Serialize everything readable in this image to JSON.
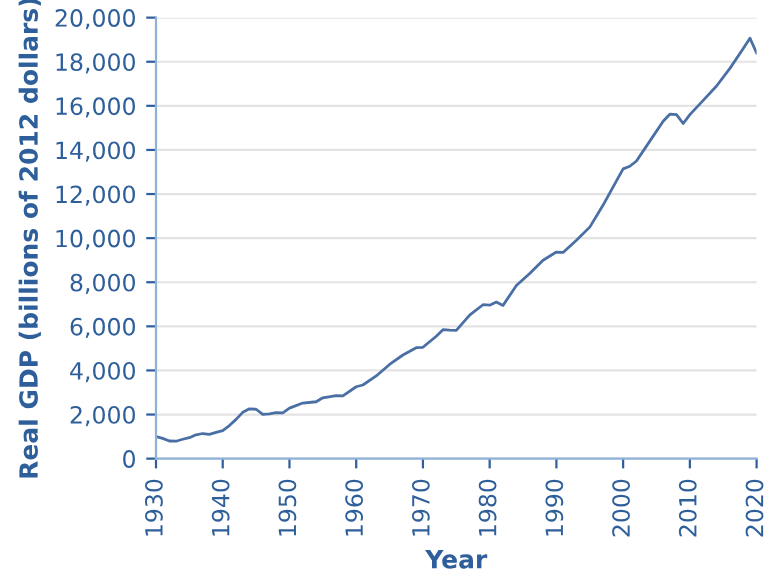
{
  "chart_data": {
    "type": "line",
    "xlabel": "Year",
    "ylabel": "Real GDP (billions of 2012 dollars)",
    "x": [
      1930,
      1931,
      1932,
      1933,
      1934,
      1935,
      1936,
      1937,
      1938,
      1939,
      1940,
      1941,
      1942,
      1943,
      1944,
      1945,
      1946,
      1947,
      1948,
      1949,
      1950,
      1952,
      1954,
      1955,
      1957,
      1958,
      1960,
      1961,
      1963,
      1965,
      1967,
      1969,
      1970,
      1972,
      1973,
      1974,
      1975,
      1977,
      1979,
      1980,
      1981,
      1982,
      1984,
      1986,
      1988,
      1990,
      1991,
      1993,
      1995,
      1997,
      1999,
      2000,
      2001,
      2002,
      2004,
      2006,
      2007,
      2008,
      2009,
      2010,
      2012,
      2014,
      2016,
      2018,
      2019,
      2020
    ],
    "series": [
      {
        "color": "#4a6fa5",
        "values": [
          1000,
          920,
          800,
          790,
          880,
          950,
          1080,
          1140,
          1100,
          1190,
          1270,
          1500,
          1780,
          2100,
          2260,
          2240,
          2010,
          2030,
          2090,
          2080,
          2290,
          2520,
          2580,
          2760,
          2860,
          2850,
          3260,
          3340,
          3750,
          4270,
          4700,
          5030,
          5050,
          5550,
          5850,
          5830,
          5820,
          6510,
          6980,
          6960,
          7100,
          6950,
          7850,
          8400,
          9000,
          9370,
          9350,
          9900,
          10500,
          11500,
          12600,
          13140,
          13260,
          13500,
          14400,
          15300,
          15620,
          15600,
          15200,
          15600,
          16250,
          16900,
          17700,
          18600,
          19070,
          18400
        ]
      }
    ],
    "xlim": [
      1930,
      2020
    ],
    "xticks": [
      1930,
      1940,
      1950,
      1960,
      1970,
      1980,
      1990,
      2000,
      2010,
      2020
    ],
    "ylim": [
      0,
      20000
    ],
    "yticks": [
      {
        "value": 0,
        "label": "0"
      },
      {
        "value": 2000,
        "label": "2,000"
      },
      {
        "value": 4000,
        "label": "4,000"
      },
      {
        "value": 6000,
        "label": "6,000"
      },
      {
        "value": 8000,
        "label": "8,000"
      },
      {
        "value": 10000,
        "label": "10,000"
      },
      {
        "value": 12000,
        "label": "12,000"
      },
      {
        "value": 14000,
        "label": "14,000"
      },
      {
        "value": 16000,
        "label": "16,000"
      },
      {
        "value": 18000,
        "label": "18,000"
      },
      {
        "value": 20000,
        "label": "20,000"
      }
    ],
    "grid": "y",
    "legend": false
  }
}
